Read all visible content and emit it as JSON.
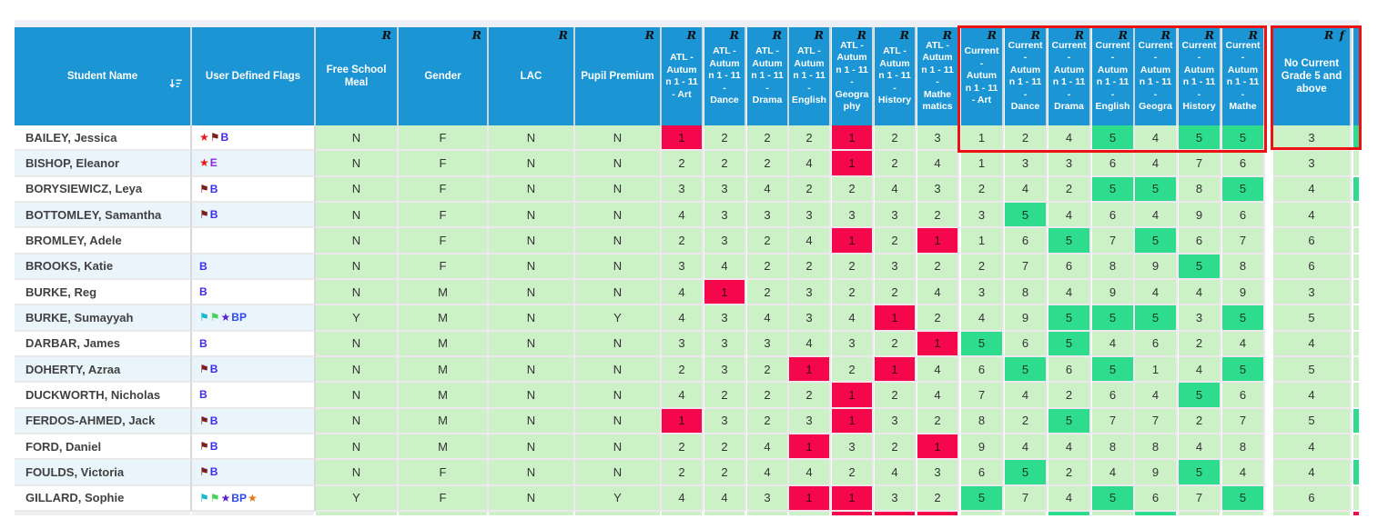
{
  "header": {
    "columns": [
      {
        "id": "student_name",
        "label": "Student Name",
        "marker": "",
        "sortable": true
      },
      {
        "id": "user_defined_flags",
        "label": "User Defined Flags",
        "marker": ""
      },
      {
        "id": "free_school_meal",
        "label": "Free School\nMeal",
        "marker": "R"
      },
      {
        "id": "gender",
        "label": "Gender",
        "marker": "R"
      },
      {
        "id": "lac",
        "label": "LAC",
        "marker": "R"
      },
      {
        "id": "pupil_premium",
        "label": "Pupil Premium",
        "marker": "R"
      },
      {
        "id": "atl_art",
        "label": "ATL -\nAutum\nn 1 - 11\n- Art",
        "marker": "R"
      },
      {
        "id": "atl_dance",
        "label": "ATL -\nAutum\nn 1 - 11\n-\nDance",
        "marker": "R"
      },
      {
        "id": "atl_drama",
        "label": "ATL -\nAutum\nn 1 - 11\n-\nDrama",
        "marker": "R"
      },
      {
        "id": "atl_english",
        "label": "ATL -\nAutum\nn 1 - 11\n-\nEnglish",
        "marker": "R"
      },
      {
        "id": "atl_geography",
        "label": "ATL -\nAutum\nn 1 - 11\n-\nGeogra\nphy",
        "marker": "R"
      },
      {
        "id": "atl_history",
        "label": "ATL -\nAutum\nn 1 - 11\n-\nHistory",
        "marker": "R"
      },
      {
        "id": "atl_mathematics",
        "label": "ATL -\nAutum\nn 1 - 11\n-\nMathe\nmatics",
        "marker": "R"
      },
      {
        "id": "current_art",
        "label": "Current\n-\nAutum\nn 1 - 11\n- Art",
        "marker": "R"
      },
      {
        "id": "current_dance",
        "label": "Current\n-\nAutum\nn 1 - 11\n-\nDance",
        "marker": "R"
      },
      {
        "id": "current_drama",
        "label": "Current\n-\nAutum\nn 1 - 11\n-\nDrama",
        "marker": "R"
      },
      {
        "id": "current_english",
        "label": "Current\n-\nAutum\nn 1 - 11\n-\nEnglish",
        "marker": "R"
      },
      {
        "id": "current_geography",
        "label": "Current\n-\nAutum\nn 1 - 11\n-\nGeogra",
        "marker": "R"
      },
      {
        "id": "current_history",
        "label": "Current\n-\nAutum\nn 1 - 11\n-\nHistory",
        "marker": "R"
      },
      {
        "id": "current_mathematics",
        "label": "Current\n-\nAutum\nn 1 - 11\n-\nMathe",
        "marker": "R"
      },
      {
        "id": "no_current_grade",
        "label": "No Current\nGrade 5 and\nabove",
        "marker": "R f"
      }
    ]
  },
  "flag_palette": {
    "red-star": {
      "shape": "star",
      "color": "#e8161d"
    },
    "purple-star": {
      "shape": "star",
      "color": "#5a1fd0"
    },
    "orange-star": {
      "shape": "star",
      "color": "#e2791c"
    },
    "maroon-flag": {
      "shape": "flag",
      "color": "#7c1d1d"
    },
    "teal-flag": {
      "shape": "flag",
      "color": "#14b9cc"
    },
    "green-flag": {
      "shape": "flag",
      "color": "#44d455"
    },
    "B": {
      "shape": "letters",
      "text": "B",
      "color": "#3d2bf2"
    },
    "E": {
      "shape": "letters",
      "text": "E",
      "color": "#8a2be2"
    },
    "BP": {
      "shape": "letters",
      "text": "BP",
      "color": "#2e47f0"
    }
  },
  "rows": [
    {
      "name": "BAILEY, Jessica",
      "flags": [
        "red-star",
        "maroon-flag",
        "B"
      ],
      "cells": [
        "N",
        "F",
        "N",
        "N",
        "1",
        "2",
        "2",
        "2",
        "1",
        "2",
        "3",
        "1",
        "2",
        "4",
        "5",
        "4",
        "5",
        "5",
        "3"
      ],
      "right_strip_highlight": true
    },
    {
      "name": "BISHOP, Eleanor",
      "flags": [
        "red-star",
        "E"
      ],
      "cells": [
        "N",
        "F",
        "N",
        "N",
        "2",
        "2",
        "2",
        "4",
        "1",
        "2",
        "4",
        "1",
        "3",
        "3",
        "6",
        "4",
        "7",
        "6",
        "3"
      ],
      "right_strip_highlight": false
    },
    {
      "name": "BORYSIEWICZ, Leya",
      "flags": [
        "maroon-flag",
        "B"
      ],
      "cells": [
        "N",
        "F",
        "N",
        "N",
        "3",
        "3",
        "4",
        "2",
        "2",
        "4",
        "3",
        "2",
        "4",
        "2",
        "5",
        "5",
        "8",
        "5",
        "4"
      ],
      "right_strip_highlight": true
    },
    {
      "name": "BOTTOMLEY, Samantha",
      "flags": [
        "maroon-flag",
        "B"
      ],
      "cells": [
        "N",
        "F",
        "N",
        "N",
        "4",
        "3",
        "3",
        "3",
        "3",
        "3",
        "2",
        "3",
        "5",
        "4",
        "6",
        "4",
        "9",
        "6",
        "4"
      ],
      "right_strip_highlight": false
    },
    {
      "name": "BROMLEY, Adele",
      "flags": [],
      "cells": [
        "N",
        "F",
        "N",
        "N",
        "2",
        "3",
        "2",
        "4",
        "1",
        "2",
        "1",
        "1",
        "6",
        "5",
        "7",
        "5",
        "6",
        "7",
        "6"
      ],
      "right_strip_highlight": false
    },
    {
      "name": "BROOKS, Katie",
      "flags": [
        "B"
      ],
      "cells": [
        "N",
        "F",
        "N",
        "N",
        "3",
        "4",
        "2",
        "2",
        "2",
        "3",
        "2",
        "2",
        "7",
        "6",
        "8",
        "9",
        "5",
        "8",
        "6"
      ],
      "right_strip_highlight": false
    },
    {
      "name": "BURKE, Reg",
      "flags": [
        "B"
      ],
      "cells": [
        "N",
        "M",
        "N",
        "N",
        "4",
        "1",
        "2",
        "3",
        "2",
        "2",
        "4",
        "3",
        "8",
        "4",
        "9",
        "4",
        "4",
        "9",
        "3"
      ],
      "right_strip_highlight": false
    },
    {
      "name": "BURKE, Sumayyah",
      "flags": [
        "teal-flag",
        "green-flag",
        "purple-star",
        "BP"
      ],
      "cells": [
        "Y",
        "M",
        "N",
        "Y",
        "4",
        "3",
        "4",
        "3",
        "4",
        "1",
        "2",
        "4",
        "9",
        "5",
        "5",
        "5",
        "3",
        "5",
        "5"
      ],
      "right_strip_highlight": false
    },
    {
      "name": "DARBAR, James",
      "flags": [
        "B"
      ],
      "cells": [
        "N",
        "M",
        "N",
        "N",
        "3",
        "3",
        "3",
        "4",
        "3",
        "2",
        "1",
        "5",
        "6",
        "5",
        "4",
        "6",
        "2",
        "4",
        "4"
      ],
      "right_strip_highlight": false
    },
    {
      "name": "DOHERTY, Azraa",
      "flags": [
        "maroon-flag",
        "B"
      ],
      "cells": [
        "N",
        "M",
        "N",
        "N",
        "2",
        "3",
        "2",
        "1",
        "2",
        "1",
        "4",
        "6",
        "5",
        "6",
        "5",
        "1",
        "4",
        "5",
        "5"
      ],
      "right_strip_highlight": false
    },
    {
      "name": "DUCKWORTH, Nicholas",
      "flags": [
        "B"
      ],
      "cells": [
        "N",
        "M",
        "N",
        "N",
        "4",
        "2",
        "2",
        "2",
        "1",
        "2",
        "4",
        "7",
        "4",
        "2",
        "6",
        "4",
        "5",
        "6",
        "4"
      ],
      "right_strip_highlight": false
    },
    {
      "name": "FERDOS-AHMED, Jack",
      "flags": [
        "maroon-flag",
        "B"
      ],
      "cells": [
        "N",
        "M",
        "N",
        "N",
        "1",
        "3",
        "2",
        "3",
        "1",
        "3",
        "2",
        "8",
        "2",
        "5",
        "7",
        "7",
        "2",
        "7",
        "5"
      ],
      "right_strip_highlight": true
    },
    {
      "name": "FORD, Daniel",
      "flags": [
        "maroon-flag",
        "B"
      ],
      "cells": [
        "N",
        "M",
        "N",
        "N",
        "2",
        "2",
        "4",
        "1",
        "3",
        "2",
        "1",
        "9",
        "4",
        "4",
        "8",
        "8",
        "4",
        "8",
        "4"
      ],
      "right_strip_highlight": false
    },
    {
      "name": "FOULDS, Victoria",
      "flags": [
        "maroon-flag",
        "B"
      ],
      "cells": [
        "N",
        "F",
        "N",
        "N",
        "2",
        "2",
        "4",
        "4",
        "2",
        "4",
        "3",
        "6",
        "5",
        "2",
        "4",
        "9",
        "5",
        "4",
        "4"
      ],
      "right_strip_highlight": true
    },
    {
      "name": "GILLARD, Sophie",
      "flags": [
        "teal-flag",
        "green-flag",
        "purple-star",
        "BP",
        "orange-star"
      ],
      "cells": [
        "Y",
        "F",
        "N",
        "Y",
        "4",
        "4",
        "3",
        "1",
        "1",
        "3",
        "2",
        "5",
        "7",
        "4",
        "5",
        "6",
        "7",
        "5",
        "6"
      ],
      "right_strip_highlight": false
    }
  ],
  "partial_next_row": {
    "atl_red_subjects": [
      "Geography",
      "History",
      "Mathematics"
    ],
    "current_green_subjects": [
      "Drama",
      "Geography"
    ]
  },
  "colors": {
    "header_blue": "#1b95d4",
    "cell_green": "#ccf1c7",
    "atl_low_highlight_red": "#f5084b",
    "current_grade5_highlight_green": "#2edc8e",
    "annotation_red": "#ed1212",
    "alt_row_blue": "#e9f4fb"
  }
}
